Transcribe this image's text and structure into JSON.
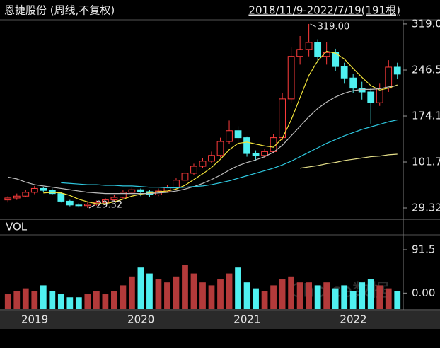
{
  "chart_data": [
    {
      "type": "candlestick",
      "title": "恩捷股份 (周线,不复权)",
      "subtitle": "2018/11/9-2022/7/19(191根)",
      "categories": [
        null,
        null,
        "2019",
        null,
        null,
        null,
        null,
        null,
        null,
        null,
        null,
        null,
        null,
        null,
        "2020",
        null,
        null,
        null,
        null,
        null,
        null,
        null,
        null,
        null,
        null,
        null,
        "2021",
        null,
        null,
        null,
        null,
        null,
        null,
        null,
        null,
        null,
        null,
        null,
        "2022",
        null,
        null,
        null,
        null,
        null,
        null
      ],
      "open": [
        42,
        45,
        48,
        54,
        60,
        57,
        52,
        40,
        34,
        33,
        35,
        38,
        42,
        46,
        54,
        58,
        55,
        50,
        56,
        62,
        73,
        84,
        95,
        103,
        112,
        134,
        151,
        140,
        115,
        112,
        118,
        140,
        201,
        268,
        279,
        290,
        268,
        274,
        252,
        234,
        218,
        212,
        195,
        218,
        251
      ],
      "high": [
        48,
        52,
        58,
        64,
        62,
        60,
        54,
        42,
        37,
        38,
        41,
        45,
        50,
        57,
        62,
        60,
        58,
        60,
        66,
        76,
        88,
        99,
        108,
        118,
        140,
        167,
        158,
        142,
        120,
        122,
        146,
        210,
        282,
        300,
        319,
        295,
        290,
        280,
        258,
        240,
        228,
        218,
        225,
        262,
        258
      ],
      "low": [
        38,
        42,
        46,
        51,
        54,
        50,
        38,
        32,
        30,
        29.32,
        33,
        36,
        40,
        44,
        51,
        48,
        46,
        48,
        54,
        60,
        70,
        81,
        92,
        100,
        109,
        130,
        132,
        110,
        104,
        108,
        115,
        136,
        195,
        255,
        268,
        258,
        255,
        245,
        225,
        210,
        200,
        162,
        190,
        212,
        232
      ],
      "close": [
        45,
        48,
        54,
        60,
        57,
        52,
        40,
        34,
        33,
        35,
        38,
        42,
        46,
        54,
        58,
        55,
        50,
        56,
        62,
        73,
        84,
        95,
        103,
        112,
        134,
        151,
        140,
        115,
        112,
        118,
        140,
        201,
        268,
        279,
        290,
        268,
        274,
        252,
        234,
        218,
        212,
        195,
        218,
        251,
        240
      ],
      "up_color": "#ff3c3c",
      "down_color": "#4ff0f0",
      "series": [
        {
          "color": "#f2e33a",
          "values": [
            null,
            null,
            null,
            null,
            53,
            54,
            53,
            49,
            43,
            39,
            36,
            36,
            39,
            43,
            48,
            51,
            53,
            55,
            56,
            59,
            65,
            74,
            83,
            93,
            106,
            121,
            131,
            133,
            130,
            127,
            125,
            139,
            168,
            203,
            238,
            261,
            276,
            273,
            264,
            249,
            235,
            222,
            215,
            218,
            223
          ]
        },
        {
          "color": "#bdbdbd",
          "values": [
            78,
            75,
            70,
            66,
            64,
            62,
            60,
            58,
            56,
            54,
            53,
            52,
            52,
            52,
            52,
            52,
            52,
            53,
            54,
            56,
            59,
            63,
            68,
            74,
            81,
            89,
            96,
            101,
            105,
            110,
            117,
            128,
            143,
            158,
            173,
            186,
            196,
            204,
            210,
            214,
            216,
            216,
            217,
            220,
            222
          ]
        },
        {
          "color": "#2ec8e0",
          "values": [
            null,
            null,
            null,
            null,
            null,
            null,
            69,
            68,
            67,
            66,
            66,
            65,
            65,
            64,
            64,
            63,
            62,
            62,
            61,
            61,
            62,
            63,
            64,
            66,
            69,
            72,
            76,
            80,
            84,
            88,
            92,
            97,
            103,
            110,
            117,
            124,
            131,
            137,
            143,
            148,
            153,
            157,
            161,
            165,
            168
          ]
        },
        {
          "color": "#e6e08a",
          "values": [
            null,
            null,
            null,
            null,
            null,
            null,
            null,
            null,
            null,
            null,
            null,
            null,
            null,
            null,
            null,
            null,
            null,
            null,
            null,
            null,
            null,
            null,
            null,
            null,
            null,
            null,
            null,
            null,
            null,
            null,
            null,
            null,
            null,
            92,
            94,
            96,
            99,
            101,
            104,
            106,
            108,
            110,
            111,
            113,
            114
          ]
        }
      ],
      "annotations": [
        {
          "value": 319,
          "label": "319.00"
        },
        {
          "value": 29.32,
          "label": "29.32"
        }
      ],
      "ylim": [
        17.07,
        325.6
      ],
      "yticks": [
        {
          "value": 319.0,
          "label": "319.0"
        },
        246.5,
        174.1,
        101.7,
        29.32
      ]
    },
    {
      "type": "bar",
      "title": "VOL",
      "values": [
        -2.5,
        3.8,
        10,
        3.8,
        16.3,
        3.8,
        -2.5,
        -8.8,
        -8.8,
        -2.5,
        3.8,
        -2.5,
        3.8,
        16.3,
        35.1,
        53.9,
        41.4,
        28.8,
        22.6,
        35.1,
        60.1,
        41.4,
        22.6,
        16.3,
        28.8,
        41.4,
        53.9,
        22.6,
        10,
        3.8,
        16.3,
        28.8,
        35.1,
        22.6,
        22.6,
        16.3,
        22.6,
        10,
        16.3,
        3.8,
        22.6,
        28.8,
        16.3,
        10,
        3.8
      ],
      "ylim": [
        -33.8,
        122.8
      ],
      "yticks": [
        91.5,
        {
          "value": 0,
          "label": "0.00"
        }
      ],
      "watermark": "Choice数据"
    }
  ]
}
